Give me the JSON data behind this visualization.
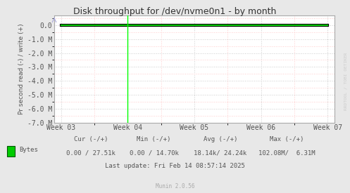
{
  "title": "Disk throughput for /dev/nvme0n1 - by month",
  "ylabel": "Pr second read (-) / write (+)",
  "background_color": "#e8e8e8",
  "plot_bg_color": "#ffffff",
  "grid_color_major": "#cccccc",
  "grid_color_minor": "#ffcccc",
  "title_color": "#333333",
  "tick_label_color": "#555555",
  "ylim": [
    -7000000,
    700000
  ],
  "yticks": [
    0.0,
    -1000000,
    -2000000,
    -3000000,
    -4000000,
    -5000000,
    -6000000,
    -7000000
  ],
  "ytick_labels": [
    "0.0",
    "-1.0 M",
    "-2.0 M",
    "-3.0 M",
    "-4.0 M",
    "-5.0 M",
    "-6.0 M",
    "-7.0 M"
  ],
  "xtick_positions": [
    0,
    1,
    2,
    3,
    4
  ],
  "xtick_labels": [
    "Week 03",
    "Week 04",
    "Week 05",
    "Week 06",
    "Week 07"
  ],
  "data_line_color_outer": "#000000",
  "data_line_color_inner": "#00cc00",
  "vertical_line_color": "#00ff00",
  "vertical_line_x": 1,
  "watermark": "RRDTOOL / TOBI OETIKER",
  "munin_text": "Munin 2.0.56",
  "legend_color": "#00cc00",
  "legend_label": "Bytes",
  "cur_label": "Cur (-/+)",
  "min_label": "Min (-/+)",
  "avg_label": "Avg (-/+)",
  "max_label": "Max (-/+)",
  "cur_val": "0.00 / 27.51k",
  "min_val": "0.00 / 14.70k",
  "avg_val": "18.14k/ 24.24k",
  "max_val": "102.08M/  6.31M",
  "last_update": "Last update: Fri Feb 14 08:57:14 2025"
}
